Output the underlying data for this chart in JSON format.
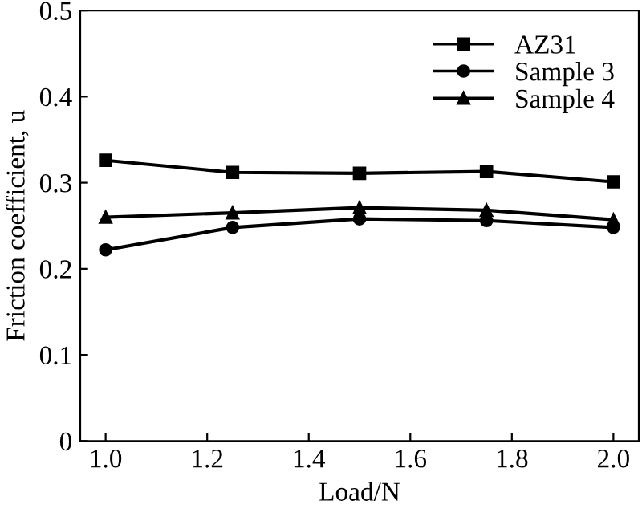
{
  "chart_data": {
    "type": "line",
    "xlabel": "Load/N",
    "ylabel": "Friction coefficient, u",
    "x": [
      1.0,
      1.25,
      1.5,
      1.75,
      2.0
    ],
    "series": [
      {
        "name": "AZ31",
        "color": "#000000",
        "marker": "square",
        "values": [
          0.326,
          0.312,
          0.311,
          0.313,
          0.301
        ]
      },
      {
        "name": "Sample 3",
        "color": "#000000",
        "marker": "circle",
        "values": [
          0.222,
          0.248,
          0.258,
          0.256,
          0.248
        ]
      },
      {
        "name": "Sample 4",
        "color": "#000000",
        "marker": "triangle",
        "values": [
          0.26,
          0.265,
          0.271,
          0.268,
          0.257
        ]
      }
    ],
    "xlim": [
      0.95,
      2.05
    ],
    "xticks": [
      {
        "value": 1.0,
        "label": "1.0"
      },
      1.2,
      1.4,
      1.6,
      1.8,
      {
        "value": 2.0,
        "label": "2.0"
      }
    ],
    "ylim": [
      0,
      0.5
    ],
    "yticks": [
      0,
      0.1,
      0.2,
      0.3,
      0.4,
      0.5
    ],
    "grid": false,
    "legend": "top right",
    "line_style": "solid"
  }
}
